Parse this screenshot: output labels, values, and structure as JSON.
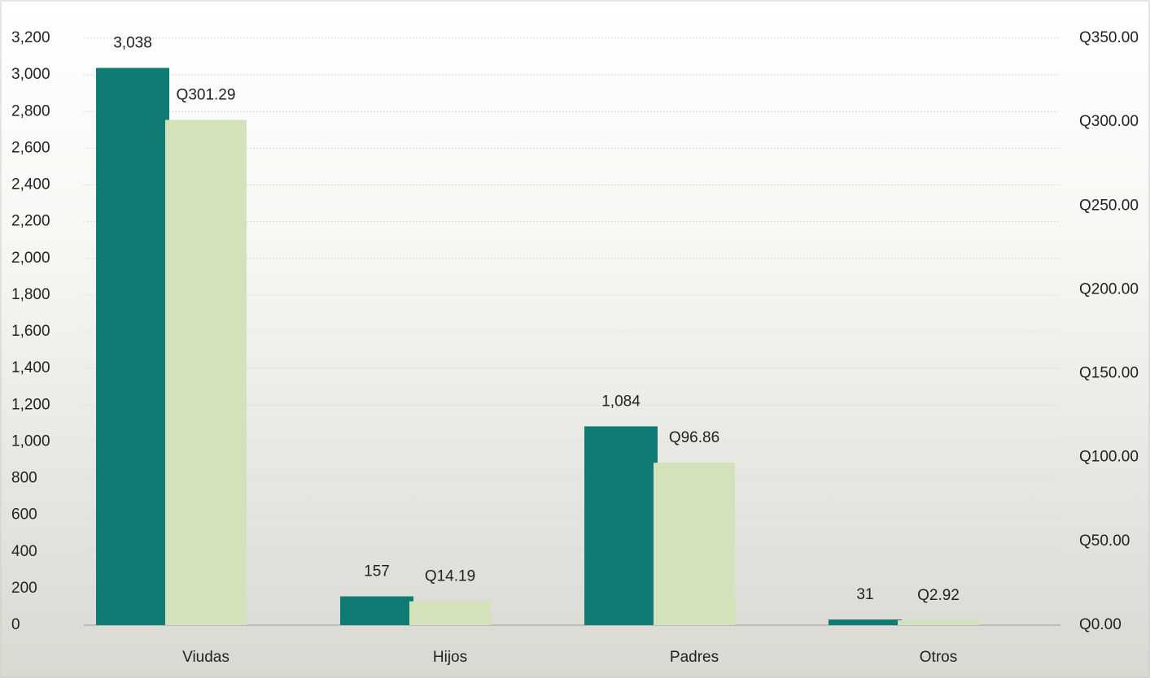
{
  "chart_data": {
    "type": "bar",
    "categories": [
      "Viudas",
      "Hijos",
      "Padres",
      "Otros"
    ],
    "series": [
      {
        "color": "#0f7b74",
        "values": [
          3038,
          157,
          1084,
          31
        ],
        "value_labels": [
          "3,038",
          "157",
          "1,084",
          "31"
        ]
      },
      {
        "color": "#d3e2b8",
        "axis": "y2",
        "values": [
          301.29,
          14.19,
          96.86,
          2.92
        ],
        "value_labels": [
          "Q301.29",
          "Q14.19",
          "Q96.86",
          "Q2.92"
        ]
      }
    ],
    "ylim": [
      0,
      3200
    ],
    "yticks": [
      0,
      200,
      400,
      600,
      800,
      {
        "value": 1000,
        "label": "1,000"
      },
      {
        "value": 1200,
        "label": "1,200"
      },
      {
        "value": 1400,
        "label": "1,400"
      },
      {
        "value": 1600,
        "label": "1,600"
      },
      {
        "value": 1800,
        "label": "1,800"
      },
      {
        "value": 2000,
        "label": "2,000"
      },
      {
        "value": 2200,
        "label": "2,200"
      },
      {
        "value": 2400,
        "label": "2,400"
      },
      {
        "value": 2600,
        "label": "2,600"
      },
      {
        "value": 2800,
        "label": "2,800"
      },
      {
        "value": 3000,
        "label": "3,000"
      },
      {
        "value": 3200,
        "label": "3,200"
      }
    ],
    "y2lim": [
      0,
      350
    ],
    "y2ticks": [
      {
        "value": 0,
        "label": "Q0.00"
      },
      {
        "value": 50,
        "label": "Q50.00"
      },
      {
        "value": 100,
        "label": "Q100.00"
      },
      {
        "value": 150,
        "label": "Q150.00"
      },
      {
        "value": 200,
        "label": "Q200.00"
      },
      {
        "value": 250,
        "label": "Q250.00"
      },
      {
        "value": 300,
        "label": "Q300.00"
      },
      {
        "value": 350,
        "label": "Q350.00"
      }
    ],
    "grid": true
  }
}
